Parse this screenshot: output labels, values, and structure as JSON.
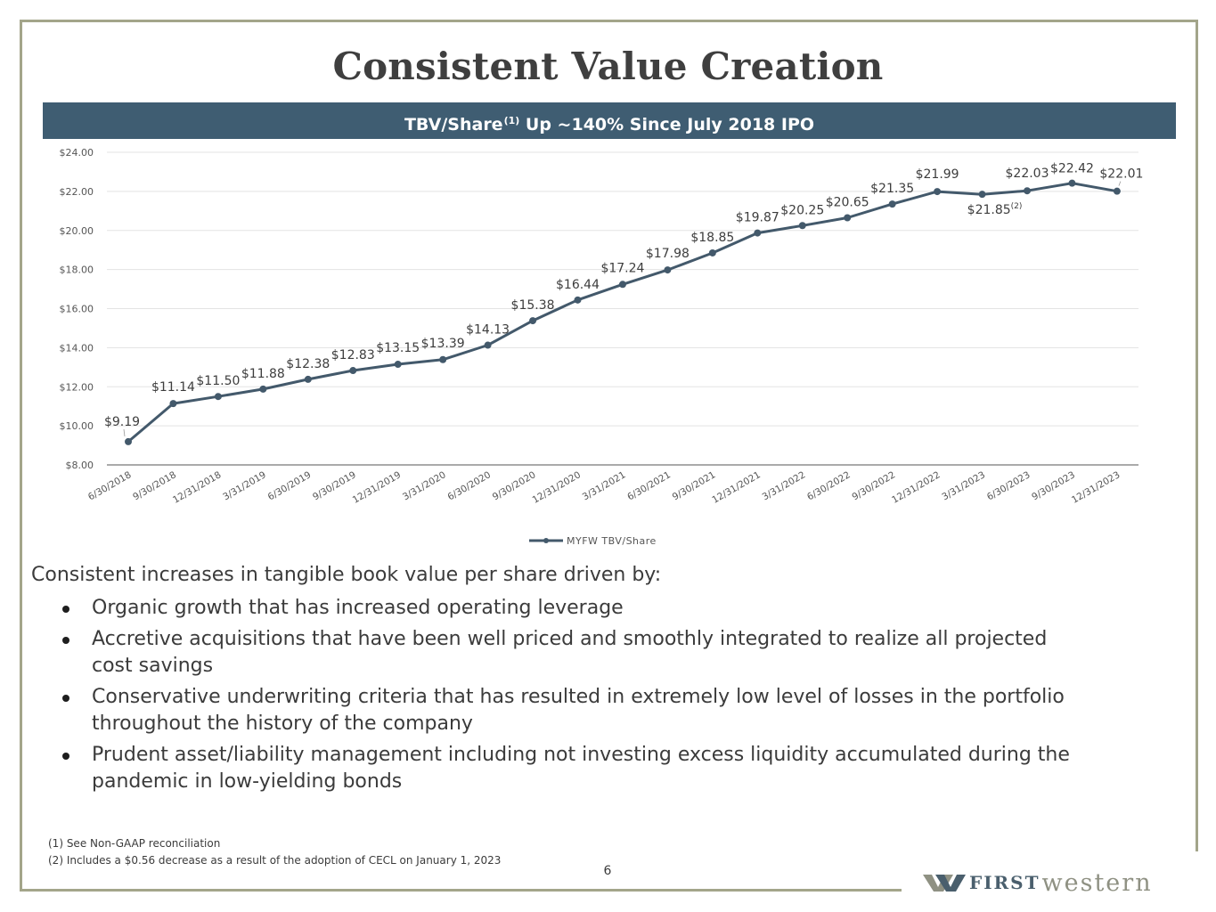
{
  "slide": {
    "title": "Consistent Value Creation",
    "banner": {
      "text_before": "TBV/Share",
      "superscript": "(1)",
      "text_after": " Up ~140% Since July 2018 IPO",
      "color": "#3f5d72"
    },
    "intro": "Consistent increases in tangible book value per share driven by:",
    "bullets": [
      "Organic growth that has increased operating leverage",
      "Accretive acquisitions that have been well priced and smoothly integrated to realize all projected cost savings",
      "Conservative underwriting criteria that has resulted in extremely low level of losses in the portfolio throughout the history of the company",
      "Prudent asset/liability management including not investing excess liquidity accumulated during the pandemic in low-yielding bonds"
    ],
    "footnotes": [
      "(1)  See Non-GAAP reconciliation",
      "(2)  Includes a $0.56 decrease as a result of the adoption of CECL on January 1, 2023"
    ],
    "page_number": "6",
    "logo": {
      "first": "FIRST",
      "western": "western",
      "icon": "first-western-w-logo-icon"
    },
    "frame_color": "#a3a58a"
  },
  "chart_data": {
    "type": "line",
    "title": "",
    "xlabel": "",
    "ylabel": "",
    "ylim": [
      8,
      24
    ],
    "ytick_step": 2,
    "ytick_labels": [
      "$8.00",
      "$10.00",
      "$12.00",
      "$14.00",
      "$16.00",
      "$18.00",
      "$20.00",
      "$22.00",
      "$24.00"
    ],
    "grid": true,
    "legend_position": "bottom-center",
    "categories": [
      "6/30/2018",
      "9/30/2018",
      "12/31/2018",
      "3/31/2019",
      "6/30/2019",
      "9/30/2019",
      "12/31/2019",
      "3/31/2020",
      "6/30/2020",
      "9/30/2020",
      "12/31/2020",
      "3/31/2021",
      "6/30/2021",
      "9/30/2021",
      "12/31/2021",
      "3/31/2022",
      "6/30/2022",
      "9/30/2022",
      "12/31/2022",
      "3/31/2023",
      "6/30/2023",
      "9/30/2023",
      "12/31/2023"
    ],
    "series": [
      {
        "name": "MYFW TBV/Share",
        "color": "#43596b",
        "values": [
          9.19,
          11.14,
          11.5,
          11.88,
          12.38,
          12.83,
          13.15,
          13.39,
          14.13,
          15.38,
          16.44,
          17.24,
          17.98,
          18.85,
          19.87,
          20.25,
          20.65,
          21.35,
          21.99,
          21.85,
          22.03,
          22.42,
          22.01
        ],
        "labels": [
          "$9.19",
          "$11.14",
          "$11.50",
          "$11.88",
          "$12.38",
          "$12.83",
          "$13.15",
          "$13.39",
          "$14.13",
          "$15.38",
          "$16.44",
          "$17.24",
          "$17.98",
          "$18.85",
          "$19.87",
          "$20.25",
          "$20.65",
          "$21.35",
          "$21.99",
          "$21.85",
          "$22.03",
          "$22.42",
          "$22.01"
        ],
        "label_footnotes": {
          "19": "(2)"
        }
      }
    ]
  }
}
